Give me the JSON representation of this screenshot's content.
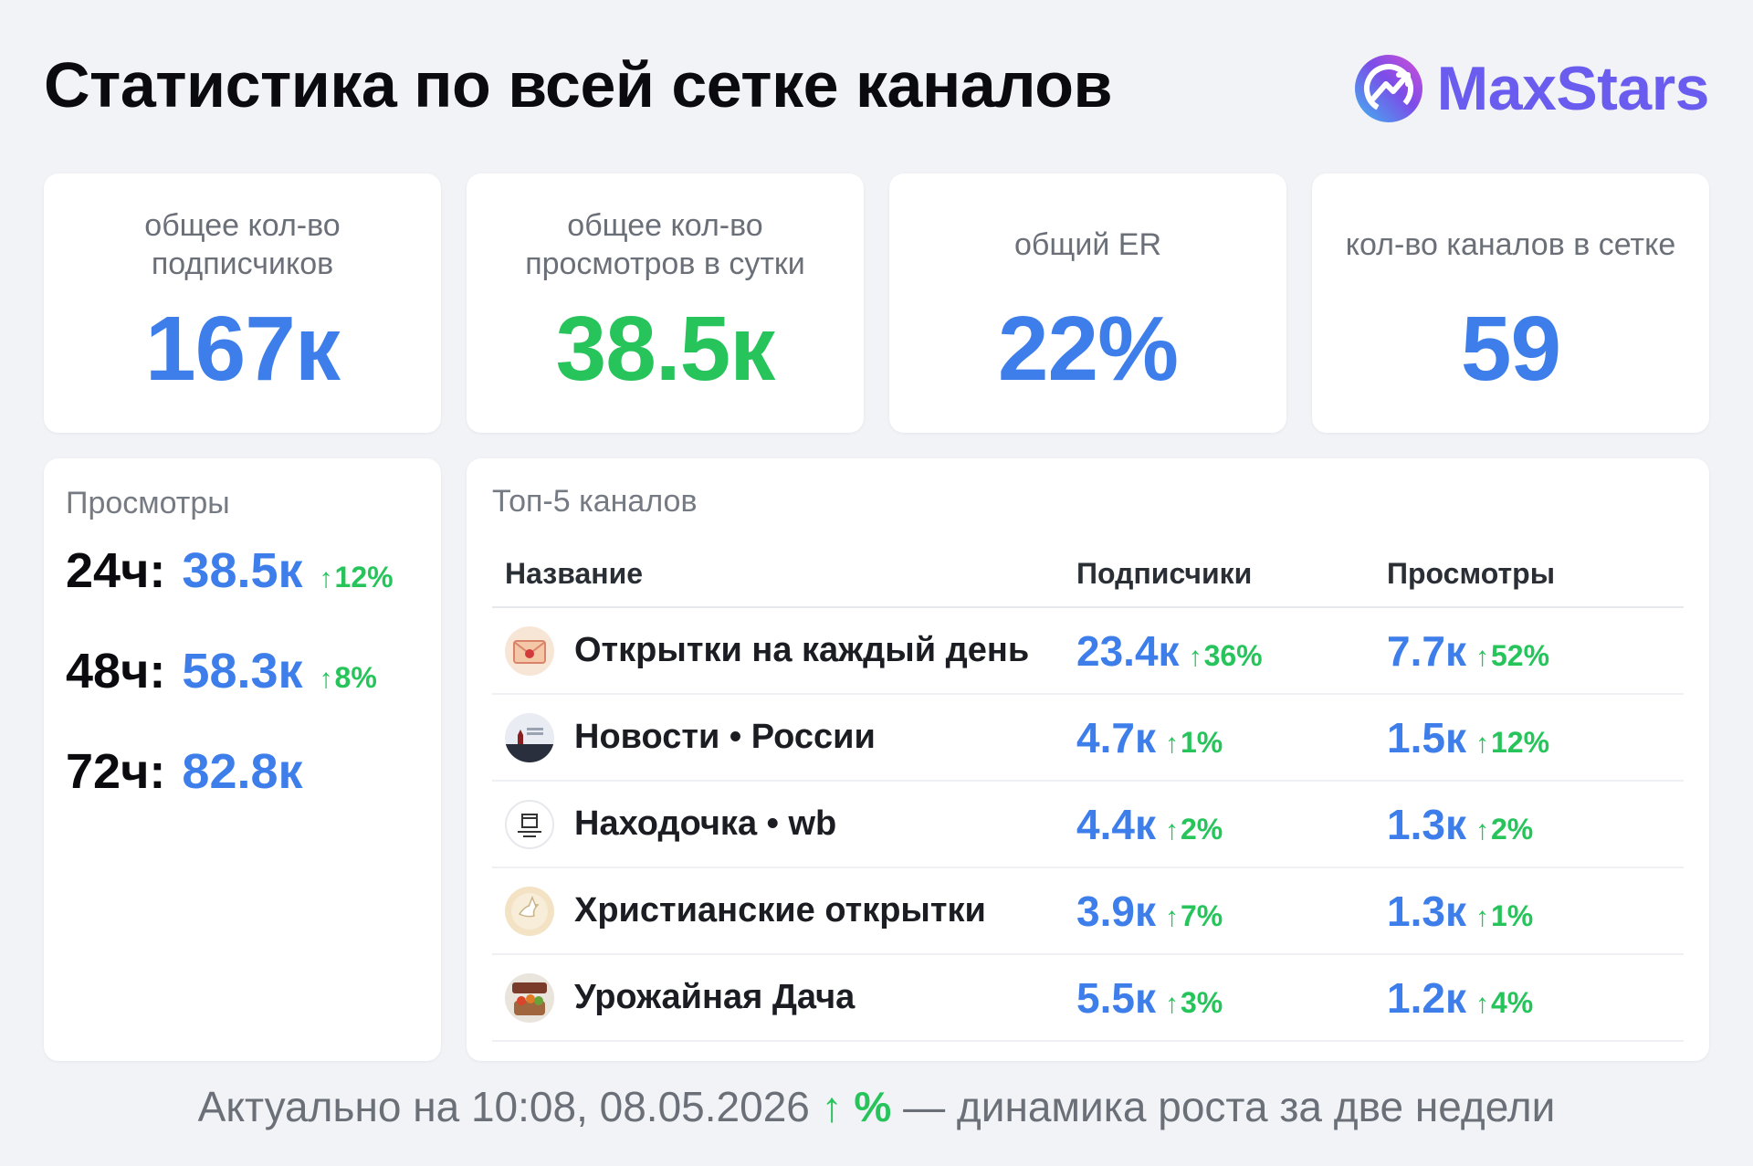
{
  "header": {
    "title": "Статистика по всей сетке каналов",
    "brand": "MaxStars",
    "brand_gradient": [
      "#3fb6f0",
      "#7b4de8",
      "#d44fd8"
    ]
  },
  "stats": [
    {
      "label": "общее кол-во подписчиков",
      "value": "167к",
      "color": "blue"
    },
    {
      "label": "общее кол-во просмотров в сутки",
      "value": "38.5к",
      "color": "green"
    },
    {
      "label": "общий ER",
      "value": "22%",
      "color": "blue"
    },
    {
      "label": "кол-во каналов в сетке",
      "value": "59",
      "color": "blue"
    }
  ],
  "views": {
    "title": "Просмотры",
    "rows": [
      {
        "period": "24ч:",
        "value": "38.5к",
        "delta": "12%"
      },
      {
        "period": "48ч:",
        "value": "58.3к",
        "delta": "8%"
      },
      {
        "period": "72ч:",
        "value": "82.8к",
        "delta": ""
      }
    ]
  },
  "top": {
    "title": "Топ-5 каналов",
    "columns": [
      "Название",
      "Подписчики",
      "Просмотры"
    ],
    "rows": [
      {
        "name": "Открытки на каждый день",
        "subs": "23.4к",
        "subs_delta": "36%",
        "views": "7.7к",
        "views_delta": "52%",
        "icon": "envelope-icon"
      },
      {
        "name": "Новости • России",
        "subs": "4.7к",
        "subs_delta": "1%",
        "views": "1.5к",
        "views_delta": "12%",
        "icon": "kremlin-icon"
      },
      {
        "name": "Находочка • wb",
        "subs": "4.4к",
        "subs_delta": "2%",
        "views": "1.3к",
        "views_delta": "2%",
        "icon": "box-icon"
      },
      {
        "name": "Христианские открытки",
        "subs": "3.9к",
        "subs_delta": "7%",
        "views": "1.3к",
        "views_delta": "1%",
        "icon": "dove-icon"
      },
      {
        "name": "Урожайная Дача",
        "subs": "5.5к",
        "subs_delta": "3%",
        "views": "1.2к",
        "views_delta": "4%",
        "icon": "harvest-icon"
      }
    ]
  },
  "footer": {
    "prefix": "Актуально на 10:08, 08.05.2026",
    "accent": "↑ %",
    "suffix": "— динамика роста за две недели"
  },
  "colors": {
    "blue": "#3d7eea",
    "green": "#27c45c"
  }
}
